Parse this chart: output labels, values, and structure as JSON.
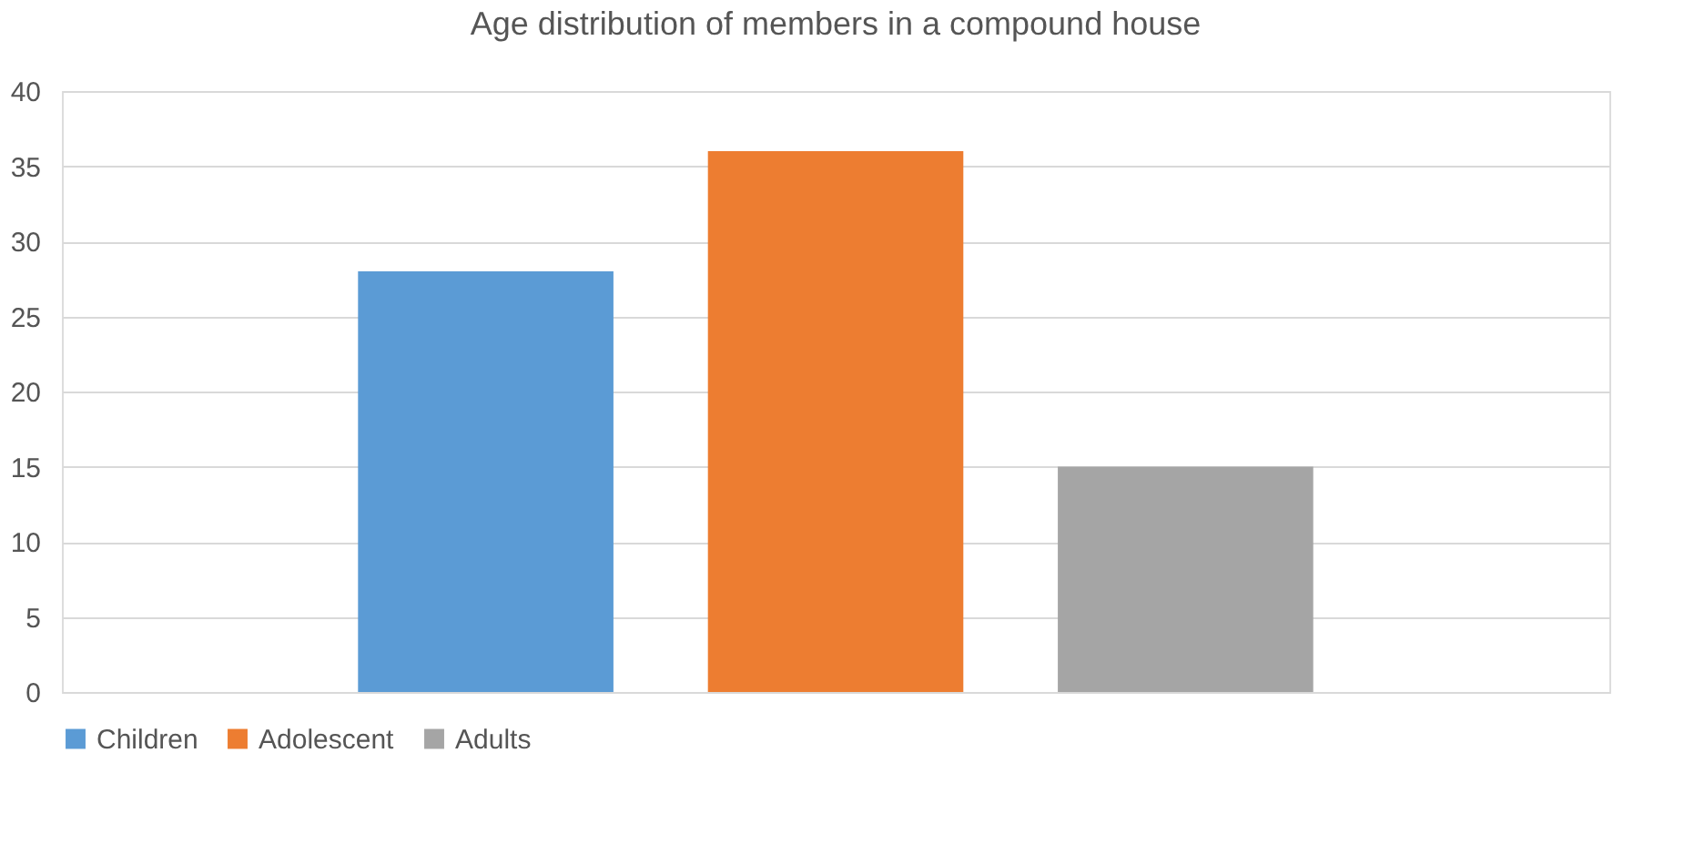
{
  "chart_data": {
    "type": "bar",
    "title": "Age distribution of members in a compound house",
    "categories": [
      null
    ],
    "series": [
      {
        "name": "Children",
        "color": "#5b9bd5",
        "values": [
          28
        ]
      },
      {
        "name": "Adolescent",
        "color": "#ed7d31",
        "values": [
          36
        ]
      },
      {
        "name": "Adults",
        "color": "#a5a5a5",
        "values": [
          15
        ]
      }
    ],
    "ylim": [
      0,
      40
    ],
    "yticks": [
      0,
      5,
      10,
      15,
      20,
      25,
      30,
      35,
      40
    ],
    "grid": "y",
    "legend": "bottom",
    "tick_labels": "y"
  }
}
